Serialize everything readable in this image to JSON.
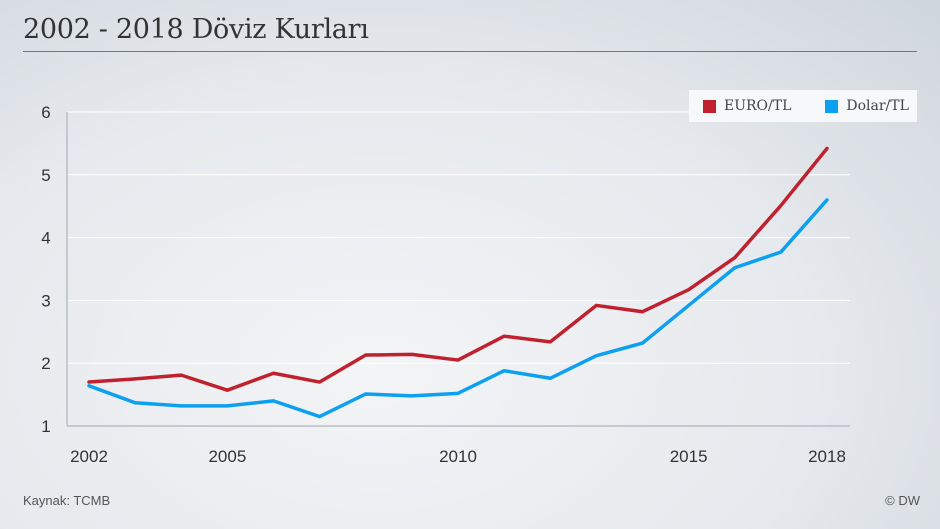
{
  "chart_data": {
    "type": "line",
    "title": "2002 - 2018 Döviz Kurları",
    "xlabel": "",
    "ylabel": "",
    "x": [
      2002,
      2003,
      2004,
      2005,
      2006,
      2007,
      2008,
      2009,
      2010,
      2011,
      2012,
      2013,
      2014,
      2015,
      2016,
      2017,
      2018
    ],
    "xticks": [
      "2002",
      "2005",
      "2010",
      "2015",
      "2018"
    ],
    "yticks": [
      "1",
      "2",
      "3",
      "4",
      "5",
      "6"
    ],
    "ylim": [
      1,
      6
    ],
    "grid": true,
    "legend_position": "top-right",
    "series": [
      {
        "name": "EURO/TL",
        "color": "#c0212f",
        "values": [
          1.7,
          1.75,
          1.81,
          1.57,
          1.84,
          1.7,
          2.13,
          2.14,
          2.05,
          2.43,
          2.34,
          2.92,
          2.82,
          3.17,
          3.68,
          4.51,
          5.42
        ]
      },
      {
        "name": "Dolar/TL",
        "color": "#0ea0f0",
        "values": [
          1.64,
          1.37,
          1.32,
          1.32,
          1.4,
          1.15,
          1.51,
          1.48,
          1.52,
          1.88,
          1.76,
          2.12,
          2.32,
          2.92,
          3.52,
          3.77,
          4.6
        ]
      }
    ]
  },
  "footer": {
    "source": "Kaynak: TCMB",
    "credit": "© DW"
  }
}
